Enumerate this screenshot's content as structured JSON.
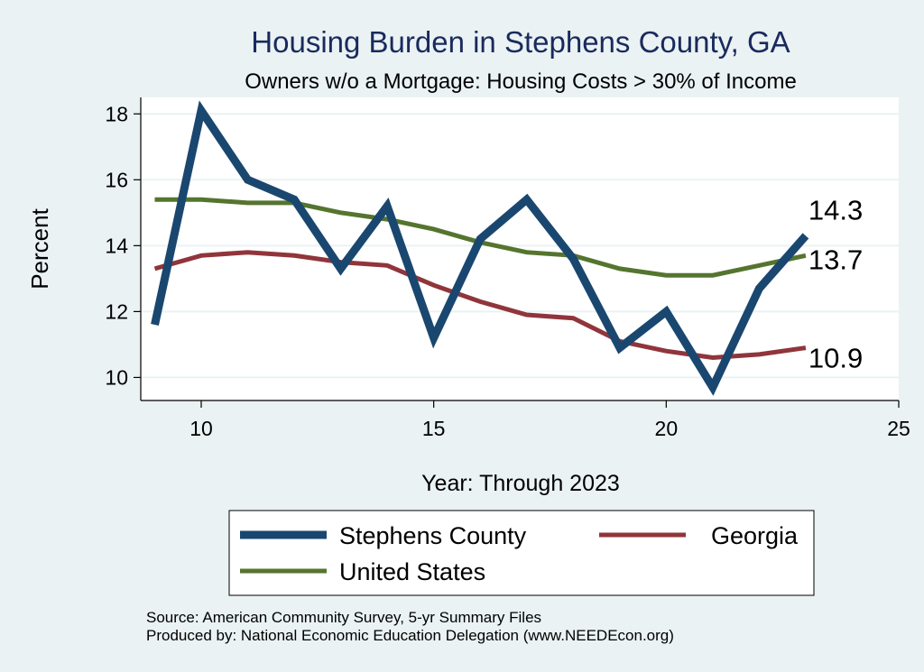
{
  "chart_data": {
    "type": "line",
    "title": "Housing Burden in Stephens County, GA",
    "subtitle": "Owners w/o a Mortgage: Housing Costs > 30% of Income",
    "xlabel": "Year: Through 2023",
    "ylabel": "Percent",
    "xlim": [
      8.7,
      25
    ],
    "ylim": [
      9.3,
      18.5
    ],
    "xticks": [
      10,
      15,
      20,
      25
    ],
    "yticks": [
      10,
      12,
      14,
      16,
      18
    ],
    "grid": true,
    "legend_position": "bottom",
    "x": [
      9,
      10,
      11,
      12,
      13,
      14,
      15,
      16,
      17,
      18,
      19,
      20,
      21,
      22,
      23
    ],
    "series": [
      {
        "name": "Stephens County",
        "color": "#1a476f",
        "values": [
          11.6,
          18.1,
          16.0,
          15.4,
          13.3,
          15.2,
          11.2,
          14.2,
          15.4,
          13.6,
          10.9,
          12.0,
          9.7,
          12.7,
          14.3
        ],
        "end_label": "14.3"
      },
      {
        "name": "Georgia",
        "color": "#90353b",
        "values": [
          13.3,
          13.7,
          13.8,
          13.7,
          13.5,
          13.4,
          12.8,
          12.3,
          11.9,
          11.8,
          11.1,
          10.8,
          10.6,
          10.7,
          10.9
        ],
        "end_label": "10.9"
      },
      {
        "name": "United States",
        "color": "#55752f",
        "values": [
          15.4,
          15.4,
          15.3,
          15.3,
          15.0,
          14.8,
          14.5,
          14.1,
          13.8,
          13.7,
          13.3,
          13.1,
          13.1,
          13.4,
          13.7
        ],
        "end_label": "13.7"
      }
    ],
    "source_lines": [
      "Source: American Community Survey, 5-yr Summary Files",
      "Produced by: National Economic Education Delegation (www.NEEDEcon.org)"
    ]
  }
}
